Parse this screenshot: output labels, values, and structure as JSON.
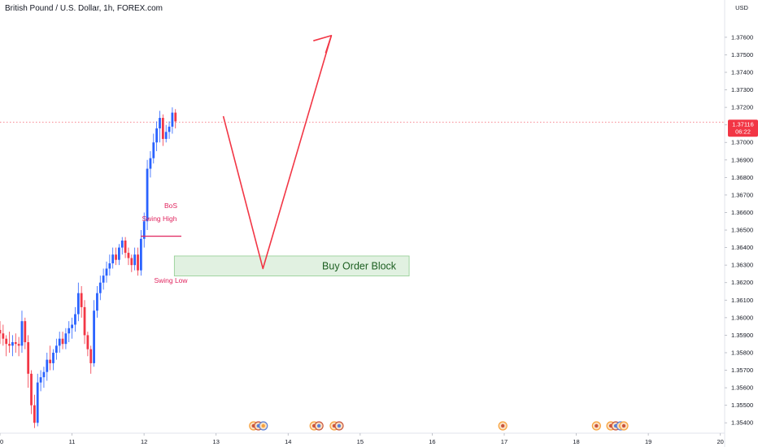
{
  "header": {
    "symbol_title": "British Pound / U.S. Dollar, 1h, FOREX.com"
  },
  "price_axis": {
    "currency": "USD",
    "last_price": "1.37116",
    "countdown": "06:22"
  },
  "colors": {
    "up": "#2962ff",
    "down": "#f23645",
    "annotation": "#e0245e",
    "arrow": "#f23645",
    "zone_fill": "#dcefdc",
    "zone_border": "#7cc47c",
    "zone_text": "#1b5e20",
    "price_line": "#f23645"
  },
  "annotations": {
    "bos": "BoS",
    "swing_high": "Swing High",
    "swing_low": "Swing Low",
    "order_block": "Buy Order Block"
  },
  "chart_data": {
    "type": "candlestick",
    "title": "British Pound / U.S. Dollar, 1h, FOREX.com",
    "ylim": [
      1.3535,
      1.3772
    ],
    "y_ticks": [
      1.354,
      1.355,
      1.356,
      1.357,
      1.358,
      1.359,
      1.36,
      1.361,
      1.362,
      1.363,
      1.364,
      1.365,
      1.366,
      1.367,
      1.368,
      1.369,
      1.37,
      1.371,
      1.372,
      1.373,
      1.374,
      1.375,
      1.376
    ],
    "y_tick_labels": [
      "1.35400",
      "1.35500",
      "1.35600",
      "1.35700",
      "1.35800",
      "1.35900",
      "1.36000",
      "1.36100",
      "1.36200",
      "1.36300",
      "1.36400",
      "1.36500",
      "1.36600",
      "1.36700",
      "1.36800",
      "1.36900",
      "1.37000",
      "1.37100",
      "1.37200",
      "1.37300",
      "1.37400",
      "1.37500",
      "1.37600"
    ],
    "x_ticks": [
      10,
      11,
      12,
      13,
      14,
      15,
      16,
      17,
      18,
      19,
      20
    ],
    "x_tick_labels": [
      "10",
      "11",
      "12",
      "13",
      "14",
      "15",
      "16",
      "17",
      "18",
      "19",
      "20"
    ],
    "xlim": [
      10,
      20.06
    ],
    "last_price": 1.37116,
    "swing_high_level": 1.36465,
    "order_block": {
      "x_start": 12.42,
      "x_end": 15.68,
      "low": 1.36238,
      "high": 1.36352
    },
    "projection": [
      [
        13.1,
        1.3715
      ],
      [
        13.65,
        1.3628
      ],
      [
        14.6,
        1.3761
      ]
    ],
    "projection_arrowhead": [
      [
        14.35,
        1.3758
      ],
      [
        14.6,
        1.3761
      ],
      [
        14.52,
        1.3751
      ]
    ],
    "candles": {
      "start": 10.0,
      "step": 0.0435,
      "ohlc": [
        [
          1.3593,
          1.3598,
          1.3585,
          1.3591
        ],
        [
          1.3591,
          1.3596,
          1.3584,
          1.3588
        ],
        [
          1.3588,
          1.359,
          1.3578,
          1.3585
        ],
        [
          1.3585,
          1.3592,
          1.358,
          1.3584
        ],
        [
          1.3584,
          1.359,
          1.3578,
          1.3586
        ],
        [
          1.3586,
          1.3591,
          1.358,
          1.3585
        ],
        [
          1.3585,
          1.3589,
          1.3578,
          1.3584
        ],
        [
          1.3584,
          1.3604,
          1.358,
          1.3598
        ],
        [
          1.3598,
          1.36,
          1.3582,
          1.3586
        ],
        [
          1.3586,
          1.359,
          1.356,
          1.3568
        ],
        [
          1.3568,
          1.357,
          1.3545,
          1.355
        ],
        [
          1.355,
          1.3556,
          1.3537,
          1.354
        ],
        [
          1.354,
          1.3568,
          1.3538,
          1.3563
        ],
        [
          1.3563,
          1.357,
          1.3558,
          1.3566
        ],
        [
          1.3566,
          1.3572,
          1.356,
          1.3569
        ],
        [
          1.3569,
          1.358,
          1.3564,
          1.3576
        ],
        [
          1.3576,
          1.3584,
          1.357,
          1.3574
        ],
        [
          1.3574,
          1.3582,
          1.357,
          1.358
        ],
        [
          1.358,
          1.3588,
          1.3576,
          1.3584
        ],
        [
          1.3584,
          1.3592,
          1.358,
          1.3588
        ],
        [
          1.3588,
          1.3592,
          1.3582,
          1.3585
        ],
        [
          1.3585,
          1.3594,
          1.3582,
          1.3591
        ],
        [
          1.3591,
          1.3598,
          1.3586,
          1.3594
        ],
        [
          1.3594,
          1.36,
          1.3588,
          1.3596
        ],
        [
          1.3596,
          1.3606,
          1.3592,
          1.3602
        ],
        [
          1.3602,
          1.362,
          1.3598,
          1.3614
        ],
        [
          1.3614,
          1.3618,
          1.36,
          1.3606
        ],
        [
          1.3606,
          1.361,
          1.3585,
          1.359
        ],
        [
          1.359,
          1.3592,
          1.3578,
          1.3582
        ],
        [
          1.3582,
          1.3584,
          1.3568,
          1.3574
        ],
        [
          1.3574,
          1.361,
          1.3572,
          1.3604
        ],
        [
          1.3604,
          1.3618,
          1.36,
          1.3614
        ],
        [
          1.3614,
          1.3624,
          1.361,
          1.362
        ],
        [
          1.362,
          1.3628,
          1.3616,
          1.3624
        ],
        [
          1.3624,
          1.3632,
          1.362,
          1.3628
        ],
        [
          1.3628,
          1.3636,
          1.3624,
          1.3631
        ],
        [
          1.3631,
          1.364,
          1.3628,
          1.3636
        ],
        [
          1.3636,
          1.364,
          1.363,
          1.3633
        ],
        [
          1.3633,
          1.3642,
          1.363,
          1.364
        ],
        [
          1.364,
          1.3646,
          1.3636,
          1.3644
        ],
        [
          1.3644,
          1.3646,
          1.3634,
          1.3637
        ],
        [
          1.3637,
          1.364,
          1.363,
          1.3634
        ],
        [
          1.3634,
          1.3636,
          1.3626,
          1.363
        ],
        [
          1.363,
          1.364,
          1.3627,
          1.3636
        ],
        [
          1.3636,
          1.364,
          1.3624,
          1.3627
        ],
        [
          1.3627,
          1.365,
          1.3624,
          1.3645
        ],
        [
          1.3645,
          1.366,
          1.364,
          1.3655
        ],
        [
          1.3655,
          1.369,
          1.365,
          1.3685
        ],
        [
          1.3685,
          1.3695,
          1.368,
          1.3691
        ],
        [
          1.3691,
          1.3705,
          1.3688,
          1.37
        ],
        [
          1.37,
          1.3712,
          1.3695,
          1.3708
        ],
        [
          1.3708,
          1.3718,
          1.37,
          1.3714
        ],
        [
          1.3714,
          1.3716,
          1.3698,
          1.3702
        ],
        [
          1.3702,
          1.371,
          1.37,
          1.3706
        ],
        [
          1.3706,
          1.3712,
          1.3702,
          1.3709
        ],
        [
          1.3709,
          1.372,
          1.3705,
          1.3717
        ],
        [
          1.3717,
          1.3719,
          1.3708,
          1.3712
        ]
      ]
    },
    "event_markers": [
      {
        "x": 13.52,
        "count": 3
      },
      {
        "x": 14.36,
        "count": 2
      },
      {
        "x": 14.64,
        "count": 2
      },
      {
        "x": 16.98,
        "count": 1
      },
      {
        "x": 18.28,
        "count": 1
      },
      {
        "x": 18.48,
        "count": 3
      },
      {
        "x": 18.66,
        "count": 1
      }
    ]
  }
}
